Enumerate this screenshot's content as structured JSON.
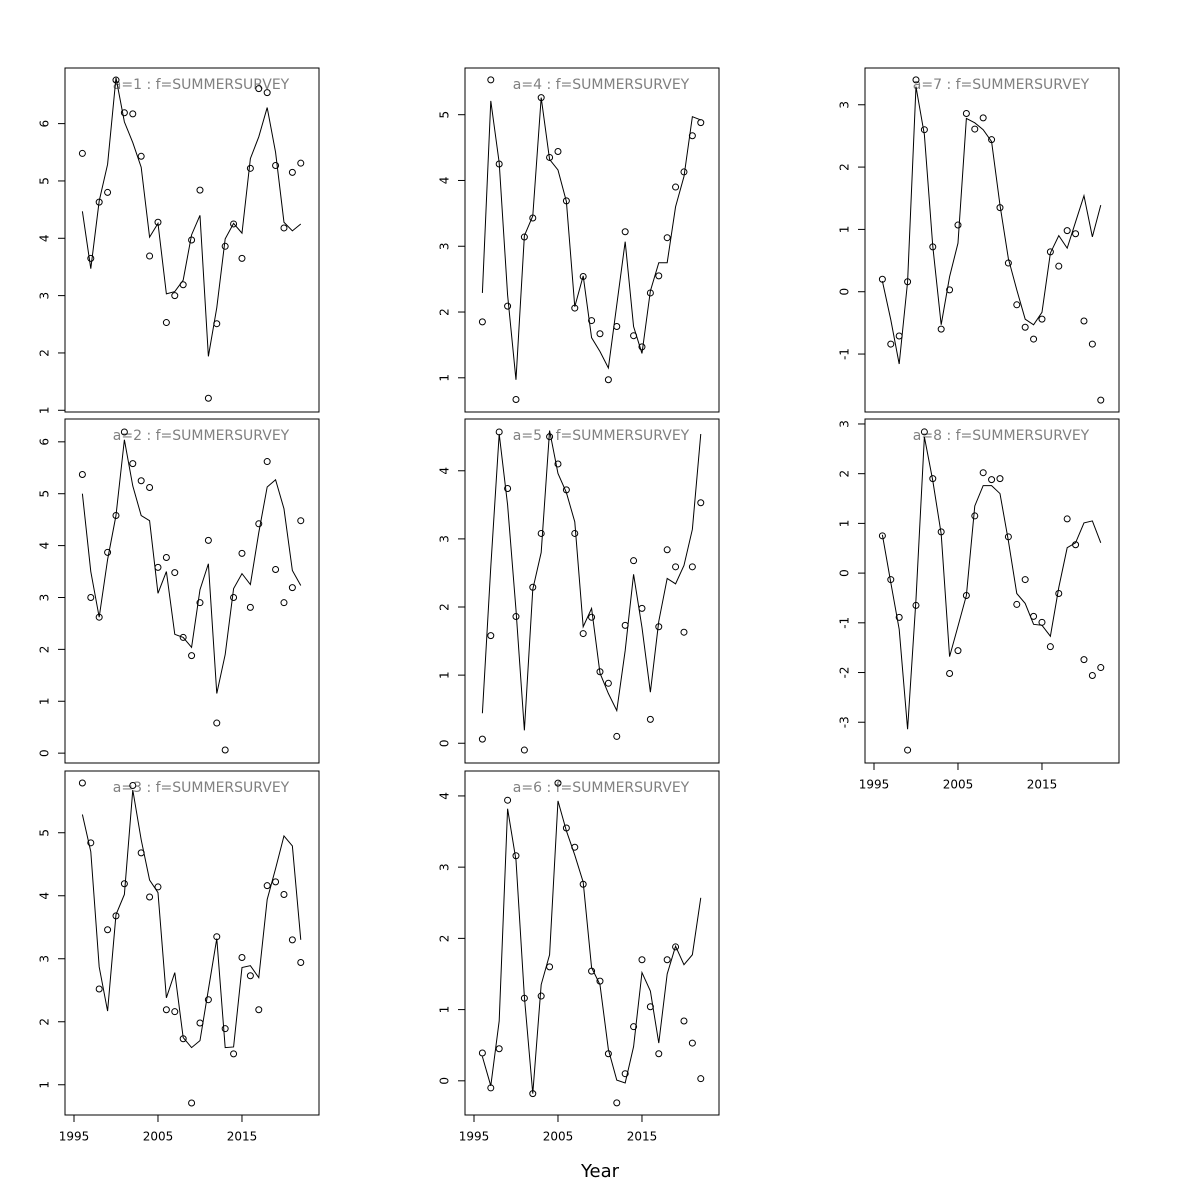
{
  "xlabel": "Year",
  "chart_data": [
    {
      "type": "line",
      "title": "a=1  :  f=SUMMERSURVEY",
      "xlim": [
        1993.93,
        2024.17
      ],
      "ylim": [
        0.97,
        6.97
      ],
      "yticks": [
        1,
        2,
        3,
        4,
        5,
        6
      ],
      "x": [
        1996,
        1997,
        1998,
        1999,
        2000,
        2001,
        2002,
        2003,
        2004,
        2005,
        2006,
        2007,
        2008,
        2009,
        2010,
        2011,
        2012,
        2013,
        2014,
        2015,
        2016,
        2017,
        2018,
        2019,
        2020,
        2021,
        2022
      ],
      "series": [
        {
          "type": "scatter",
          "color": "#000000",
          "values": [
            5.48,
            3.65,
            4.63,
            4.8,
            6.76,
            6.19,
            6.17,
            5.43,
            3.69,
            4.28,
            2.53,
            3.0,
            3.19,
            3.97,
            4.84,
            1.21,
            2.51,
            3.86,
            4.25,
            3.65,
            5.22,
            6.61,
            6.54,
            5.27,
            4.18,
            5.15,
            5.31
          ]
        },
        {
          "type": "line",
          "color": "#000000",
          "values": [
            4.47,
            3.47,
            4.65,
            5.29,
            6.8,
            6.03,
            5.67,
            5.24,
            4.02,
            4.26,
            3.03,
            3.07,
            3.27,
            4.06,
            4.4,
            1.94,
            2.79,
            3.99,
            4.26,
            4.09,
            5.39,
            5.77,
            6.28,
            5.5,
            4.28,
            4.13,
            4.25
          ]
        }
      ]
    },
    {
      "type": "line",
      "title": "a=2  :  f=SUMMERSURVEY",
      "xlim": [
        1993.93,
        2024.17
      ],
      "ylim": [
        -0.19,
        6.44
      ],
      "yticks": [
        0,
        1,
        2,
        3,
        4,
        5,
        6
      ],
      "x": [
        1996,
        1997,
        1998,
        1999,
        2000,
        2001,
        2002,
        2003,
        2004,
        2005,
        2006,
        2007,
        2008,
        2009,
        2010,
        2011,
        2012,
        2013,
        2014,
        2015,
        2016,
        2017,
        2018,
        2019,
        2020,
        2021,
        2022
      ],
      "series": [
        {
          "type": "scatter",
          "color": "#000000",
          "values": [
            5.37,
            3.0,
            2.62,
            3.87,
            4.58,
            6.19,
            5.58,
            5.25,
            5.12,
            3.58,
            3.77,
            3.48,
            2.23,
            1.88,
            2.9,
            4.1,
            0.58,
            0.06,
            3.0,
            3.85,
            2.81,
            4.42,
            5.62,
            3.54,
            2.9,
            3.19,
            4.48
          ]
        },
        {
          "type": "line",
          "color": "#000000",
          "values": [
            5.0,
            3.5,
            2.62,
            3.73,
            4.58,
            6.04,
            5.15,
            4.58,
            4.48,
            3.08,
            3.5,
            2.29,
            2.23,
            2.04,
            3.15,
            3.65,
            1.15,
            1.9,
            3.17,
            3.46,
            3.25,
            4.25,
            5.13,
            5.27,
            4.71,
            3.52,
            3.23
          ]
        }
      ]
    },
    {
      "type": "line",
      "title": "a=3  :  f=SUMMERSURVEY",
      "xlim": [
        1993.93,
        2024.17
      ],
      "ylim": [
        0.52,
        5.98
      ],
      "yticks": [
        1,
        2,
        3,
        4,
        5
      ],
      "xticks": [
        1995,
        2005,
        2015
      ],
      "x": [
        1996,
        1997,
        1998,
        1999,
        2000,
        2001,
        2002,
        2003,
        2004,
        2005,
        2006,
        2007,
        2008,
        2009,
        2010,
        2011,
        2012,
        2013,
        2014,
        2015,
        2016,
        2017,
        2018,
        2019,
        2020,
        2021,
        2022
      ],
      "series": [
        {
          "type": "scatter",
          "color": "#000000",
          "values": [
            5.79,
            4.84,
            2.52,
            3.46,
            3.68,
            4.19,
            5.75,
            4.68,
            3.98,
            4.14,
            2.19,
            2.16,
            1.73,
            0.71,
            1.98,
            2.35,
            3.35,
            1.89,
            1.49,
            3.02,
            2.73,
            2.19,
            4.16,
            4.22,
            4.02,
            3.3,
            2.94
          ]
        },
        {
          "type": "line",
          "color": "#000000",
          "values": [
            5.29,
            4.7,
            2.87,
            2.17,
            3.7,
            4.02,
            5.68,
            4.89,
            4.25,
            4.05,
            2.38,
            2.78,
            1.75,
            1.59,
            1.7,
            2.51,
            3.32,
            1.59,
            1.6,
            2.86,
            2.89,
            2.7,
            3.94,
            4.43,
            4.95,
            4.79,
            3.3
          ]
        }
      ]
    },
    {
      "type": "line",
      "title": "a=4  :  f=SUMMERSURVEY",
      "xlim": [
        1993.93,
        2024.17
      ],
      "ylim": [
        0.48,
        5.71
      ],
      "yticks": [
        1,
        2,
        3,
        4,
        5
      ],
      "x": [
        1996,
        1997,
        1998,
        1999,
        2000,
        2001,
        2002,
        2003,
        2004,
        2005,
        2006,
        2007,
        2008,
        2009,
        2010,
        2011,
        2012,
        2013,
        2014,
        2015,
        2016,
        2017,
        2018,
        2019,
        2020,
        2021,
        2022
      ],
      "series": [
        {
          "type": "scatter",
          "color": "#000000",
          "values": [
            1.85,
            5.53,
            4.25,
            2.09,
            0.67,
            3.14,
            3.43,
            5.26,
            4.35,
            4.44,
            3.69,
            2.06,
            2.54,
            1.87,
            1.67,
            0.97,
            1.78,
            3.22,
            1.64,
            1.47,
            2.29,
            2.55,
            3.13,
            3.9,
            4.13,
            4.68,
            4.88
          ]
        },
        {
          "type": "line",
          "color": "#000000",
          "values": [
            2.29,
            5.21,
            4.27,
            2.26,
            0.97,
            3.16,
            3.46,
            5.26,
            4.32,
            4.16,
            3.68,
            2.08,
            2.55,
            1.61,
            1.4,
            1.15,
            2.11,
            3.07,
            1.78,
            1.37,
            2.32,
            2.75,
            2.75,
            3.6,
            4.06,
            4.97,
            4.92
          ]
        }
      ]
    },
    {
      "type": "line",
      "title": "a=5  :  f=SUMMERSURVEY",
      "xlim": [
        1993.93,
        2024.17
      ],
      "ylim": [
        -0.29,
        4.76
      ],
      "yticks": [
        0,
        1,
        2,
        3,
        4
      ],
      "x": [
        1996,
        1997,
        1998,
        1999,
        2000,
        2001,
        2002,
        2003,
        2004,
        2005,
        2006,
        2007,
        2008,
        2009,
        2010,
        2011,
        2012,
        2013,
        2014,
        2015,
        2016,
        2017,
        2018,
        2019,
        2020,
        2021,
        2022
      ],
      "series": [
        {
          "type": "scatter",
          "color": "#000000",
          "values": [
            0.06,
            1.58,
            4.57,
            3.74,
            1.86,
            -0.1,
            2.29,
            3.08,
            4.5,
            4.1,
            3.72,
            3.08,
            1.61,
            1.85,
            1.05,
            0.88,
            0.1,
            1.73,
            2.68,
            1.98,
            0.35,
            1.71,
            2.84,
            2.59,
            1.63,
            2.59,
            3.53
          ]
        },
        {
          "type": "line",
          "color": "#000000",
          "values": [
            0.44,
            2.59,
            4.54,
            3.5,
            1.96,
            0.19,
            2.26,
            2.8,
            4.59,
            3.96,
            3.68,
            3.25,
            1.71,
            1.98,
            1.03,
            0.73,
            0.48,
            1.36,
            2.48,
            1.7,
            0.75,
            1.79,
            2.42,
            2.34,
            2.61,
            3.14,
            4.54
          ]
        }
      ]
    },
    {
      "type": "line",
      "title": "a=6  :  f=SUMMERSURVEY",
      "xlim": [
        1993.93,
        2024.17
      ],
      "ylim": [
        -0.48,
        4.35
      ],
      "yticks": [
        0,
        1,
        2,
        3,
        4
      ],
      "xticks": [
        1995,
        2005,
        2015
      ],
      "x": [
        1996,
        1997,
        1998,
        1999,
        2000,
        2001,
        2002,
        2003,
        2004,
        2005,
        2006,
        2007,
        2008,
        2009,
        2010,
        2011,
        2012,
        2013,
        2014,
        2015,
        2016,
        2017,
        2018,
        2019,
        2020,
        2021,
        2022
      ],
      "series": [
        {
          "type": "scatter",
          "color": "#000000",
          "values": [
            0.39,
            -0.1,
            0.45,
            3.94,
            3.16,
            1.16,
            -0.18,
            1.19,
            1.6,
            4.18,
            3.55,
            3.28,
            2.76,
            1.54,
            1.4,
            0.38,
            -0.31,
            0.1,
            0.76,
            1.7,
            1.04,
            0.38,
            1.7,
            1.88,
            0.84,
            0.53,
            0.03
          ]
        },
        {
          "type": "line",
          "color": "#000000",
          "values": [
            0.34,
            -0.07,
            0.84,
            3.82,
            3.1,
            1.18,
            -0.18,
            1.35,
            1.77,
            3.93,
            3.51,
            3.17,
            2.79,
            1.59,
            1.35,
            0.44,
            0.01,
            -0.03,
            0.48,
            1.52,
            1.26,
            0.53,
            1.5,
            1.89,
            1.63,
            1.77,
            2.57
          ]
        }
      ]
    },
    {
      "type": "line",
      "title": "a=7  :  f=SUMMERSURVEY",
      "xlim": [
        1993.93,
        2024.17
      ],
      "ylim": [
        -1.93,
        3.59
      ],
      "yticks": [
        -1,
        0,
        1,
        2,
        3
      ],
      "x": [
        1996,
        1997,
        1998,
        1999,
        2000,
        2001,
        2002,
        2003,
        2004,
        2005,
        2006,
        2007,
        2008,
        2009,
        2010,
        2011,
        2012,
        2013,
        2014,
        2015,
        2016,
        2017,
        2018,
        2019,
        2020,
        2021,
        2022
      ],
      "series": [
        {
          "type": "scatter",
          "color": "#000000",
          "values": [
            0.2,
            -0.84,
            -0.71,
            0.16,
            3.4,
            2.6,
            0.72,
            -0.6,
            0.03,
            1.07,
            2.86,
            2.61,
            2.79,
            2.44,
            1.35,
            0.46,
            -0.21,
            -0.57,
            -0.76,
            -0.44,
            0.64,
            0.41,
            0.98,
            0.93,
            -0.47,
            -0.84,
            -1.74
          ]
        },
        {
          "type": "line",
          "color": "#000000",
          "values": [
            0.17,
            -0.45,
            -1.16,
            0.16,
            3.29,
            2.52,
            0.73,
            -0.53,
            0.24,
            0.78,
            2.78,
            2.71,
            2.6,
            2.41,
            1.39,
            0.53,
            0.03,
            -0.44,
            -0.53,
            -0.33,
            0.62,
            0.9,
            0.7,
            1.12,
            1.54,
            0.88,
            1.39
          ]
        }
      ]
    },
    {
      "type": "line",
      "title": "a=8  :  f=SUMMERSURVEY",
      "xlim": [
        1993.93,
        2024.17
      ],
      "ylim": [
        -3.82,
        3.1
      ],
      "yticks": [
        -3,
        -2,
        -1,
        0,
        1,
        2,
        3
      ],
      "xticks": [
        1995,
        2005,
        2015
      ],
      "x": [
        1996,
        1997,
        1998,
        1999,
        2000,
        2001,
        2002,
        2003,
        2004,
        2005,
        2006,
        2007,
        2008,
        2009,
        2010,
        2011,
        2012,
        2013,
        2014,
        2015,
        2016,
        2017,
        2018,
        2019,
        2020,
        2021,
        2022
      ],
      "series": [
        {
          "type": "scatter",
          "color": "#000000",
          "values": [
            0.75,
            -0.13,
            -0.89,
            -3.56,
            -0.65,
            2.84,
            1.9,
            0.83,
            -2.02,
            -1.56,
            -0.45,
            1.15,
            2.02,
            1.88,
            1.9,
            0.73,
            -0.63,
            -0.13,
            -0.87,
            -0.99,
            -1.48,
            -0.41,
            1.09,
            0.57,
            -1.74,
            -2.06,
            -1.9
          ]
        },
        {
          "type": "line",
          "color": "#000000",
          "values": [
            0.77,
            -0.19,
            -1.13,
            -3.14,
            -0.53,
            2.74,
            1.86,
            0.79,
            -1.68,
            -1.07,
            -0.45,
            1.35,
            1.76,
            1.76,
            1.6,
            0.65,
            -0.41,
            -0.61,
            -1.03,
            -1.05,
            -1.27,
            -0.29,
            0.51,
            0.61,
            1.01,
            1.05,
            0.61
          ]
        }
      ]
    }
  ]
}
